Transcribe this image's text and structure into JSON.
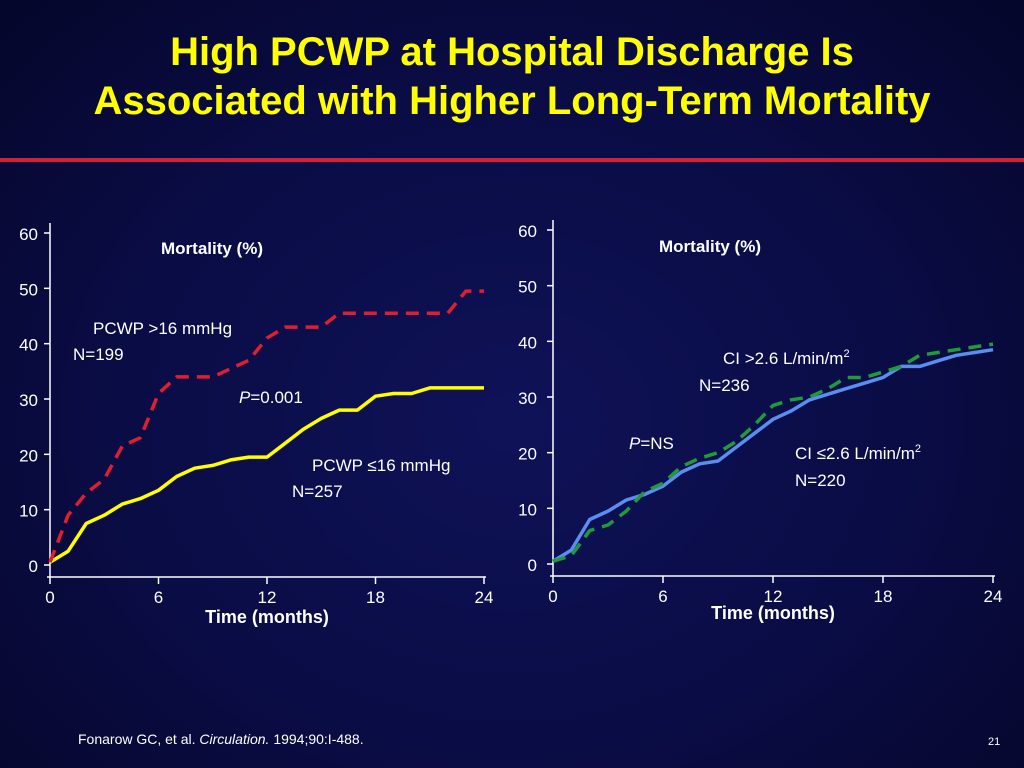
{
  "slide": {
    "title_line1": "High PCWP at Hospital Discharge Is",
    "title_line2": "Associated with Higher Long-Term Mortality",
    "accent_color": "#d21f3c",
    "title_color": "#ffff00"
  },
  "footer": {
    "authors": "Fonarow GC, et al.",
    "journal": "Circulation.",
    "citation": "1994;90:I-488."
  },
  "page_number": "21",
  "chart_data": [
    {
      "type": "line",
      "ylabel": "Mortality (%)",
      "xlabel": "Time (months)",
      "xlim": [
        0,
        24
      ],
      "ylim": [
        0,
        60
      ],
      "x_ticks": [
        "0",
        "6",
        "12",
        "18",
        "24"
      ],
      "y_ticks": [
        "0",
        "10",
        "20",
        "30",
        "40",
        "50",
        "60"
      ],
      "grid": false,
      "pvalue_label": "P",
      "pvalue_text": "=0.001",
      "series": [
        {
          "name": "PCWP >16 mmHg",
          "n_label": "N=199",
          "color": "#e01e2e",
          "style": "dashed",
          "points": [
            [
              0,
              0.5
            ],
            [
              1,
              9
            ],
            [
              2,
              13
            ],
            [
              3,
              15.5
            ],
            [
              4,
              21.5
            ],
            [
              5,
              23
            ],
            [
              6,
              31
            ],
            [
              7,
              34
            ],
            [
              8,
              34
            ],
            [
              9,
              34
            ],
            [
              10,
              35.5
            ],
            [
              11,
              37
            ],
            [
              12,
              41
            ],
            [
              13,
              43
            ],
            [
              14,
              43
            ],
            [
              15,
              43
            ],
            [
              16,
              45.5
            ],
            [
              17,
              45.5
            ],
            [
              18,
              45.5
            ],
            [
              19,
              45.5
            ],
            [
              20,
              45.5
            ],
            [
              21,
              45.5
            ],
            [
              22,
              45.5
            ],
            [
              23,
              49.5
            ],
            [
              24,
              49.5
            ]
          ]
        },
        {
          "name": "PCWP ≤16 mmHg",
          "n_label": "N=257",
          "color": "#ffff00",
          "style": "solid",
          "points": [
            [
              0,
              0.5
            ],
            [
              1,
              2.5
            ],
            [
              2,
              7.5
            ],
            [
              3,
              9
            ],
            [
              4,
              11
            ],
            [
              5,
              12
            ],
            [
              6,
              13.5
            ],
            [
              7,
              16
            ],
            [
              8,
              17.5
            ],
            [
              9,
              18
            ],
            [
              10,
              19
            ],
            [
              11,
              19.5
            ],
            [
              12,
              19.5
            ],
            [
              13,
              22
            ],
            [
              14,
              24.5
            ],
            [
              15,
              26.5
            ],
            [
              16,
              28
            ],
            [
              17,
              28
            ],
            [
              18,
              30.5
            ],
            [
              19,
              31
            ],
            [
              20,
              31
            ],
            [
              21,
              32
            ],
            [
              22,
              32
            ],
            [
              23,
              32
            ],
            [
              24,
              32
            ]
          ]
        }
      ]
    },
    {
      "type": "line",
      "ylabel": "Mortality (%)",
      "xlabel": "Time (months)",
      "xlim": [
        0,
        24
      ],
      "ylim": [
        0,
        60
      ],
      "x_ticks": [
        "0",
        "6",
        "12",
        "18",
        "24"
      ],
      "y_ticks": [
        "0",
        "10",
        "20",
        "30",
        "40",
        "50",
        "60"
      ],
      "grid": false,
      "pvalue_label": "P",
      "pvalue_text": "=NS",
      "series": [
        {
          "name": "CI >2.6 L/min/m",
          "name_sup": "2",
          "n_label": "N=236",
          "color": "#5b8cf0",
          "style": "solid",
          "points": [
            [
              0,
              0.5
            ],
            [
              1,
              2.5
            ],
            [
              2,
              8
            ],
            [
              3,
              9.5
            ],
            [
              4,
              11.5
            ],
            [
              5,
              12.5
            ],
            [
              6,
              14
            ],
            [
              7,
              16.5
            ],
            [
              8,
              18
            ],
            [
              9,
              18.5
            ],
            [
              10,
              21
            ],
            [
              11,
              23.5
            ],
            [
              12,
              26
            ],
            [
              13,
              27.5
            ],
            [
              14,
              29.5
            ],
            [
              15,
              30.5
            ],
            [
              16,
              31.5
            ],
            [
              17,
              32.5
            ],
            [
              18,
              33.5
            ],
            [
              19,
              35.5
            ],
            [
              20,
              35.5
            ],
            [
              21,
              36.5
            ],
            [
              22,
              37.5
            ],
            [
              23,
              38
            ],
            [
              24,
              38.5
            ]
          ]
        },
        {
          "name": "CI  ≤2.6 L/min/m",
          "name_sup": "2",
          "n_label": "N=220",
          "color": "#1f9b3a",
          "style": "dashed",
          "points": [
            [
              0,
              0.5
            ],
            [
              1,
              1.5
            ],
            [
              2,
              6
            ],
            [
              3,
              7
            ],
            [
              4,
              9.5
            ],
            [
              5,
              13
            ],
            [
              6,
              14.5
            ],
            [
              7,
              17.5
            ],
            [
              8,
              19
            ],
            [
              9,
              20
            ],
            [
              10,
              22
            ],
            [
              11,
              25
            ],
            [
              12,
              28.5
            ],
            [
              13,
              29.5
            ],
            [
              14,
              30
            ],
            [
              15,
              31.5
            ],
            [
              16,
              33.5
            ],
            [
              17,
              33.5
            ],
            [
              18,
              34.5
            ],
            [
              19,
              35.5
            ],
            [
              20,
              37.5
            ],
            [
              21,
              38
            ],
            [
              22,
              38.5
            ],
            [
              23,
              39
            ],
            [
              24,
              39.5
            ]
          ]
        }
      ]
    }
  ]
}
